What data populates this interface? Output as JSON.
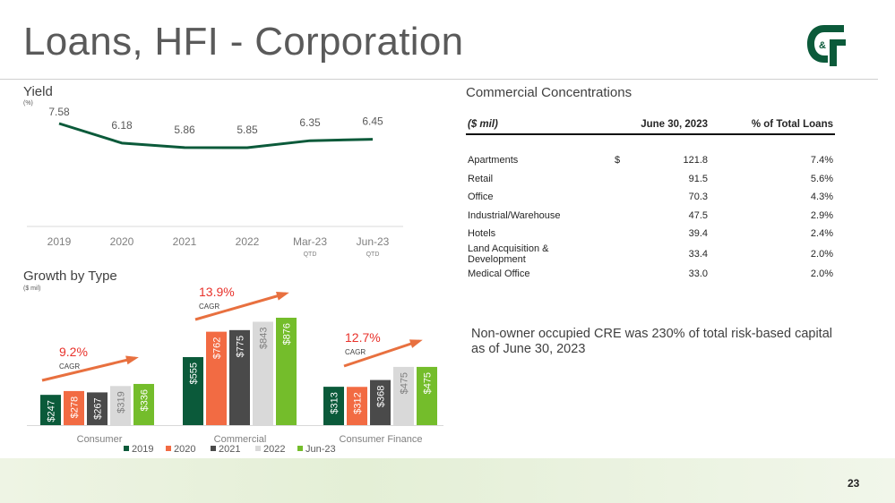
{
  "title": "Loans, HFI - Corporation",
  "page_number": "23",
  "logo_text": "C&F",
  "yield_section": {
    "title": "Yield",
    "unit": "(%)"
  },
  "growth_section": {
    "title": "Growth by Type",
    "unit": "($ mil)"
  },
  "concentrations": {
    "title": "Commercial Concentrations",
    "headers": [
      "($ mil)",
      "June 30, 2023",
      "% of Total Loans"
    ],
    "rows": [
      {
        "label": "Apartments",
        "currency": "$",
        "value": "121.8",
        "pct": "7.4%"
      },
      {
        "label": "Retail",
        "currency": "",
        "value": "91.5",
        "pct": "5.6%"
      },
      {
        "label": "Office",
        "currency": "",
        "value": "70.3",
        "pct": "4.3%"
      },
      {
        "label": "Industrial/Warehouse",
        "currency": "",
        "value": "47.5",
        "pct": "2.9%"
      },
      {
        "label": "Hotels",
        "currency": "",
        "value": "39.4",
        "pct": "2.4%"
      },
      {
        "label": "Land Acquisition & Development",
        "currency": "",
        "value": "33.4",
        "pct": "2.0%"
      },
      {
        "label": "Medical Office",
        "currency": "",
        "value": "33.0",
        "pct": "2.0%"
      }
    ]
  },
  "note": "Non-owner occupied CRE was 230% of total risk-based capital as of June 30, 2023",
  "colors": {
    "green_dark": "#0b5a3a",
    "orange": "#f26b43",
    "gray_dark": "#4a4a4a",
    "gray_light": "#d9d9d9",
    "green_light": "#74bd2b",
    "cagr_red": "#e8312a",
    "arrow": "#e8703f"
  },
  "chart_data": [
    {
      "type": "line",
      "title": "Yield",
      "unit": "(%)",
      "categories": [
        "2019",
        "2020",
        "2021",
        "2022",
        "Mar-23",
        "Jun-23"
      ],
      "category_sublabels": [
        "",
        "",
        "",
        "",
        "QTD",
        "QTD"
      ],
      "values": [
        7.58,
        6.18,
        5.86,
        5.85,
        6.35,
        6.45
      ],
      "value_labels": [
        "7.58",
        "6.18",
        "5.86",
        "5.85",
        "6.35",
        "6.45"
      ],
      "ylim": [
        5.0,
        8.0
      ]
    },
    {
      "type": "bar",
      "title": "Growth by Type",
      "unit": "($ mil)",
      "categories": [
        "Consumer",
        "Commercial",
        "Consumer Finance"
      ],
      "series": [
        {
          "name": "2019",
          "color": "#0b5a3a",
          "values": [
            247,
            555,
            313
          ],
          "labels": [
            "$247",
            "$555",
            "$313"
          ]
        },
        {
          "name": "2020",
          "color": "#f26b43",
          "values": [
            278,
            762,
            312
          ],
          "labels": [
            "$278",
            "$762",
            "$312"
          ]
        },
        {
          "name": "2021",
          "color": "#4a4a4a",
          "values": [
            267,
            775,
            368
          ],
          "labels": [
            "$267",
            "$775",
            "$368"
          ]
        },
        {
          "name": "2022",
          "color": "#d9d9d9",
          "values": [
            319,
            843,
            475
          ],
          "labels": [
            "$319",
            "$843",
            "$475"
          ]
        },
        {
          "name": "Jun-23",
          "color": "#74bd2b",
          "values": [
            336,
            876,
            475
          ],
          "labels": [
            "$336",
            "$876",
            "$475"
          ]
        }
      ],
      "cagr": [
        {
          "value": "9.2%",
          "label": "CAGR"
        },
        {
          "value": "13.9%",
          "label": "CAGR"
        },
        {
          "value": "12.7%",
          "label": "CAGR"
        }
      ],
      "ylim": [
        0,
        900
      ]
    }
  ]
}
